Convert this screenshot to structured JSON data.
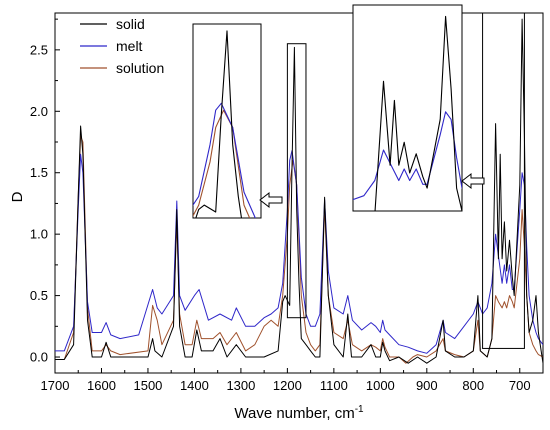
{
  "chart_data": {
    "type": "line",
    "xlabel": "Wave number, cm",
    "xlabel_superscript": "-1",
    "ylabel": "D",
    "x_reversed": true,
    "xlim": [
      1700,
      650
    ],
    "ylim": [
      -0.13,
      2.8
    ],
    "xticks": [
      1700,
      1600,
      1500,
      1400,
      1300,
      1200,
      1100,
      1000,
      900,
      800,
      700
    ],
    "yticks": [
      0.0,
      0.5,
      1.0,
      1.5,
      2.0,
      2.5
    ],
    "ytick_labels": [
      "0.0",
      "0.5",
      "1.0",
      "1.5",
      "2.0",
      "2.5"
    ],
    "grid": false,
    "legend_position": "top-left",
    "series": [
      {
        "name": "solid",
        "color": "#000000",
        "points": [
          [
            1700,
            -0.02
          ],
          [
            1680,
            -0.02
          ],
          [
            1660,
            0.1
          ],
          [
            1650,
            1.3
          ],
          [
            1645,
            1.88
          ],
          [
            1640,
            1.65
          ],
          [
            1630,
            0.3
          ],
          [
            1620,
            0.0
          ],
          [
            1600,
            0.0
          ],
          [
            1590,
            0.12
          ],
          [
            1580,
            0.0
          ],
          [
            1560,
            0.0
          ],
          [
            1500,
            0.0
          ],
          [
            1490,
            0.15
          ],
          [
            1485,
            0.05
          ],
          [
            1470,
            0.0
          ],
          [
            1445,
            0.25
          ],
          [
            1438,
            1.2
          ],
          [
            1432,
            0.25
          ],
          [
            1420,
            0.0
          ],
          [
            1405,
            0.0
          ],
          [
            1395,
            0.22
          ],
          [
            1385,
            0.05
          ],
          [
            1360,
            0.05
          ],
          [
            1345,
            0.15
          ],
          [
            1330,
            0.0
          ],
          [
            1310,
            0.1
          ],
          [
            1290,
            0.0
          ],
          [
            1270,
            0.0
          ],
          [
            1250,
            0.0
          ],
          [
            1220,
            0.05
          ],
          [
            1210,
            0.45
          ],
          [
            1205,
            0.5
          ],
          [
            1195,
            0.42
          ],
          [
            1190,
            1.55
          ],
          [
            1185,
            2.52
          ],
          [
            1180,
            1.2
          ],
          [
            1175,
            0.6
          ],
          [
            1170,
            0.15
          ],
          [
            1160,
            0.1
          ],
          [
            1150,
            0.05
          ],
          [
            1140,
            0.0
          ],
          [
            1130,
            0.0
          ],
          [
            1120,
            1.3
          ],
          [
            1112,
            0.5
          ],
          [
            1100,
            0.1
          ],
          [
            1080,
            0.0
          ],
          [
            1070,
            0.35
          ],
          [
            1062,
            0.0
          ],
          [
            1040,
            0.0
          ],
          [
            1020,
            0.1
          ],
          [
            1010,
            0.0
          ],
          [
            1000,
            0.0
          ],
          [
            995,
            0.12
          ],
          [
            990,
            0.05
          ],
          [
            980,
            -0.03
          ],
          [
            960,
            0.0
          ],
          [
            940,
            -0.05
          ],
          [
            920,
            0.0
          ],
          [
            900,
            -0.05
          ],
          [
            880,
            0.0
          ],
          [
            865,
            0.3
          ],
          [
            860,
            0.05
          ],
          [
            840,
            0.0
          ],
          [
            820,
            0.0
          ],
          [
            800,
            0.05
          ],
          [
            790,
            0.5
          ],
          [
            785,
            0.05
          ],
          [
            770,
            0.0
          ],
          [
            760,
            0.15
          ],
          [
            752,
            1.9
          ],
          [
            746,
            0.8
          ],
          [
            742,
            1.65
          ],
          [
            738,
            0.8
          ],
          [
            733,
            1.1
          ],
          [
            728,
            0.7
          ],
          [
            722,
            0.95
          ],
          [
            716,
            0.65
          ],
          [
            712,
            0.5
          ],
          [
            700,
            1.4
          ],
          [
            695,
            2.75
          ],
          [
            690,
            1.8
          ],
          [
            685,
            0.5
          ],
          [
            680,
            0.2
          ],
          [
            672,
            0.3
          ],
          [
            665,
            0.5
          ],
          [
            660,
            0.2
          ],
          [
            650,
            -0.05
          ]
        ]
      },
      {
        "name": "melt",
        "color": "#2f27c9",
        "points": [
          [
            1700,
            0.05
          ],
          [
            1680,
            0.05
          ],
          [
            1660,
            0.25
          ],
          [
            1650,
            1.2
          ],
          [
            1645,
            1.65
          ],
          [
            1640,
            1.5
          ],
          [
            1630,
            0.45
          ],
          [
            1620,
            0.2
          ],
          [
            1600,
            0.2
          ],
          [
            1590,
            0.28
          ],
          [
            1580,
            0.18
          ],
          [
            1560,
            0.15
          ],
          [
            1520,
            0.18
          ],
          [
            1490,
            0.55
          ],
          [
            1480,
            0.4
          ],
          [
            1470,
            0.35
          ],
          [
            1445,
            0.5
          ],
          [
            1438,
            1.27
          ],
          [
            1432,
            0.5
          ],
          [
            1420,
            0.38
          ],
          [
            1400,
            0.5
          ],
          [
            1390,
            0.55
          ],
          [
            1370,
            0.3
          ],
          [
            1345,
            0.35
          ],
          [
            1320,
            0.3
          ],
          [
            1310,
            0.4
          ],
          [
            1290,
            0.25
          ],
          [
            1270,
            0.25
          ],
          [
            1250,
            0.32
          ],
          [
            1235,
            0.35
          ],
          [
            1220,
            0.4
          ],
          [
            1210,
            0.6
          ],
          [
            1200,
            1.2
          ],
          [
            1195,
            1.6
          ],
          [
            1190,
            1.68
          ],
          [
            1180,
            1.4
          ],
          [
            1170,
            0.65
          ],
          [
            1160,
            0.35
          ],
          [
            1150,
            0.25
          ],
          [
            1140,
            0.25
          ],
          [
            1130,
            0.35
          ],
          [
            1120,
            1.28
          ],
          [
            1112,
            0.7
          ],
          [
            1100,
            0.4
          ],
          [
            1080,
            0.35
          ],
          [
            1070,
            0.5
          ],
          [
            1060,
            0.3
          ],
          [
            1040,
            0.22
          ],
          [
            1020,
            0.28
          ],
          [
            1010,
            0.25
          ],
          [
            1000,
            0.2
          ],
          [
            995,
            0.3
          ],
          [
            990,
            0.22
          ],
          [
            980,
            0.18
          ],
          [
            960,
            0.1
          ],
          [
            940,
            0.08
          ],
          [
            920,
            0.05
          ],
          [
            900,
            0.03
          ],
          [
            880,
            0.1
          ],
          [
            865,
            0.3
          ],
          [
            860,
            0.2
          ],
          [
            840,
            0.15
          ],
          [
            820,
            0.25
          ],
          [
            800,
            0.35
          ],
          [
            790,
            0.45
          ],
          [
            780,
            0.35
          ],
          [
            770,
            0.4
          ],
          [
            760,
            0.6
          ],
          [
            752,
            1.0
          ],
          [
            745,
            0.8
          ],
          [
            738,
            0.6
          ],
          [
            733,
            0.75
          ],
          [
            728,
            0.6
          ],
          [
            722,
            0.75
          ],
          [
            716,
            0.55
          ],
          [
            712,
            0.55
          ],
          [
            700,
            1.2
          ],
          [
            695,
            1.5
          ],
          [
            690,
            1.4
          ],
          [
            685,
            0.9
          ],
          [
            680,
            0.5
          ],
          [
            672,
            0.3
          ],
          [
            665,
            0.2
          ],
          [
            660,
            0.15
          ],
          [
            650,
            0.1
          ]
        ]
      },
      {
        "name": "solution",
        "color": "#a0522d",
        "points": [
          [
            1700,
            -0.02
          ],
          [
            1680,
            -0.02
          ],
          [
            1660,
            0.2
          ],
          [
            1650,
            1.3
          ],
          [
            1645,
            1.8
          ],
          [
            1640,
            1.75
          ],
          [
            1630,
            0.4
          ],
          [
            1620,
            0.05
          ],
          [
            1600,
            0.05
          ],
          [
            1590,
            0.1
          ],
          [
            1580,
            0.05
          ],
          [
            1560,
            0.02
          ],
          [
            1500,
            0.05
          ],
          [
            1490,
            0.42
          ],
          [
            1480,
            0.3
          ],
          [
            1470,
            0.1
          ],
          [
            1445,
            0.3
          ],
          [
            1438,
            1.1
          ],
          [
            1432,
            0.35
          ],
          [
            1420,
            0.1
          ],
          [
            1405,
            0.1
          ],
          [
            1395,
            0.3
          ],
          [
            1385,
            0.15
          ],
          [
            1360,
            0.15
          ],
          [
            1345,
            0.2
          ],
          [
            1330,
            0.1
          ],
          [
            1310,
            0.2
          ],
          [
            1290,
            0.05
          ],
          [
            1270,
            0.1
          ],
          [
            1250,
            0.25
          ],
          [
            1235,
            0.3
          ],
          [
            1220,
            0.25
          ],
          [
            1210,
            0.5
          ],
          [
            1200,
            1.0
          ],
          [
            1195,
            1.4
          ],
          [
            1188,
            1.6
          ],
          [
            1180,
            1.4
          ],
          [
            1170,
            0.5
          ],
          [
            1160,
            0.2
          ],
          [
            1150,
            0.1
          ],
          [
            1140,
            0.05
          ],
          [
            1130,
            0.1
          ],
          [
            1120,
            1.22
          ],
          [
            1112,
            0.5
          ],
          [
            1100,
            0.2
          ],
          [
            1080,
            0.15
          ],
          [
            1070,
            0.3
          ],
          [
            1060,
            0.1
          ],
          [
            1040,
            0.05
          ],
          [
            1020,
            0.1
          ],
          [
            1010,
            0.08
          ],
          [
            1000,
            0.05
          ],
          [
            995,
            0.15
          ],
          [
            990,
            0.08
          ],
          [
            980,
            0.0
          ],
          [
            960,
            0.0
          ],
          [
            945,
            -0.05
          ],
          [
            930,
            0.0
          ],
          [
            920,
            0.02
          ],
          [
            900,
            0.0
          ],
          [
            880,
            0.05
          ],
          [
            865,
            0.15
          ],
          [
            860,
            0.05
          ],
          [
            840,
            0.02
          ],
          [
            820,
            0.0
          ],
          [
            800,
            0.05
          ],
          [
            790,
            0.3
          ],
          [
            785,
            0.05
          ],
          [
            770,
            0.0
          ],
          [
            760,
            0.15
          ],
          [
            752,
            0.5
          ],
          [
            746,
            0.45
          ],
          [
            738,
            0.4
          ],
          [
            733,
            0.45
          ],
          [
            728,
            0.4
          ],
          [
            722,
            0.5
          ],
          [
            716,
            0.45
          ],
          [
            712,
            0.4
          ],
          [
            700,
            0.8
          ],
          [
            695,
            1.2
          ],
          [
            690,
            0.9
          ],
          [
            685,
            0.5
          ],
          [
            680,
            0.2
          ],
          [
            672,
            0.1
          ],
          [
            665,
            0.05
          ],
          [
            660,
            0.02
          ],
          [
            650,
            0.0
          ]
        ]
      }
    ],
    "highlights": [
      {
        "name": "box-1190",
        "x_range": [
          1200,
          1160
        ],
        "y_range": [
          0.32,
          2.55
        ]
      },
      {
        "name": "box-730",
        "x_range": [
          780,
          690
        ],
        "y_range": [
          0.07,
          2.8
        ]
      }
    ],
    "insets": [
      {
        "name": "inset-1190",
        "arrow": "points-left"
      },
      {
        "name": "inset-730",
        "arrow": "points-left"
      }
    ]
  }
}
